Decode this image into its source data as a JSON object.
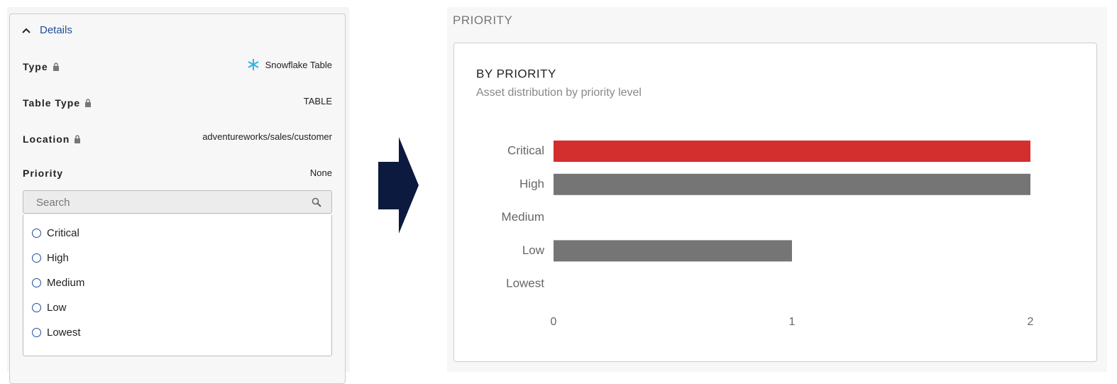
{
  "details": {
    "toggle": "Details",
    "fields": [
      {
        "label": "Type",
        "value": "Snowflake Table"
      },
      {
        "label": "Table Type",
        "value": "TABLE"
      },
      {
        "label": "Location",
        "value": "adventureworks/sales/customer"
      },
      {
        "label": "Priority",
        "value": "None"
      }
    ],
    "search_placeholder": "Search",
    "options": [
      "Critical",
      "High",
      "Medium",
      "Low",
      "Lowest"
    ]
  },
  "section_title": "PRIORITY",
  "chart_data": {
    "type": "bar",
    "orientation": "horizontal",
    "title": "BY PRIORITY",
    "subtitle": "Asset distribution by priority level",
    "categories": [
      "Critical",
      "High",
      "Medium",
      "Low",
      "Lowest"
    ],
    "values": [
      2,
      2,
      0,
      1,
      0
    ],
    "colors": [
      "#d32f2f",
      "#757575",
      "#757575",
      "#757575",
      "#757575"
    ],
    "xlim": [
      0,
      2
    ],
    "xticks": [
      0,
      1,
      2
    ]
  }
}
